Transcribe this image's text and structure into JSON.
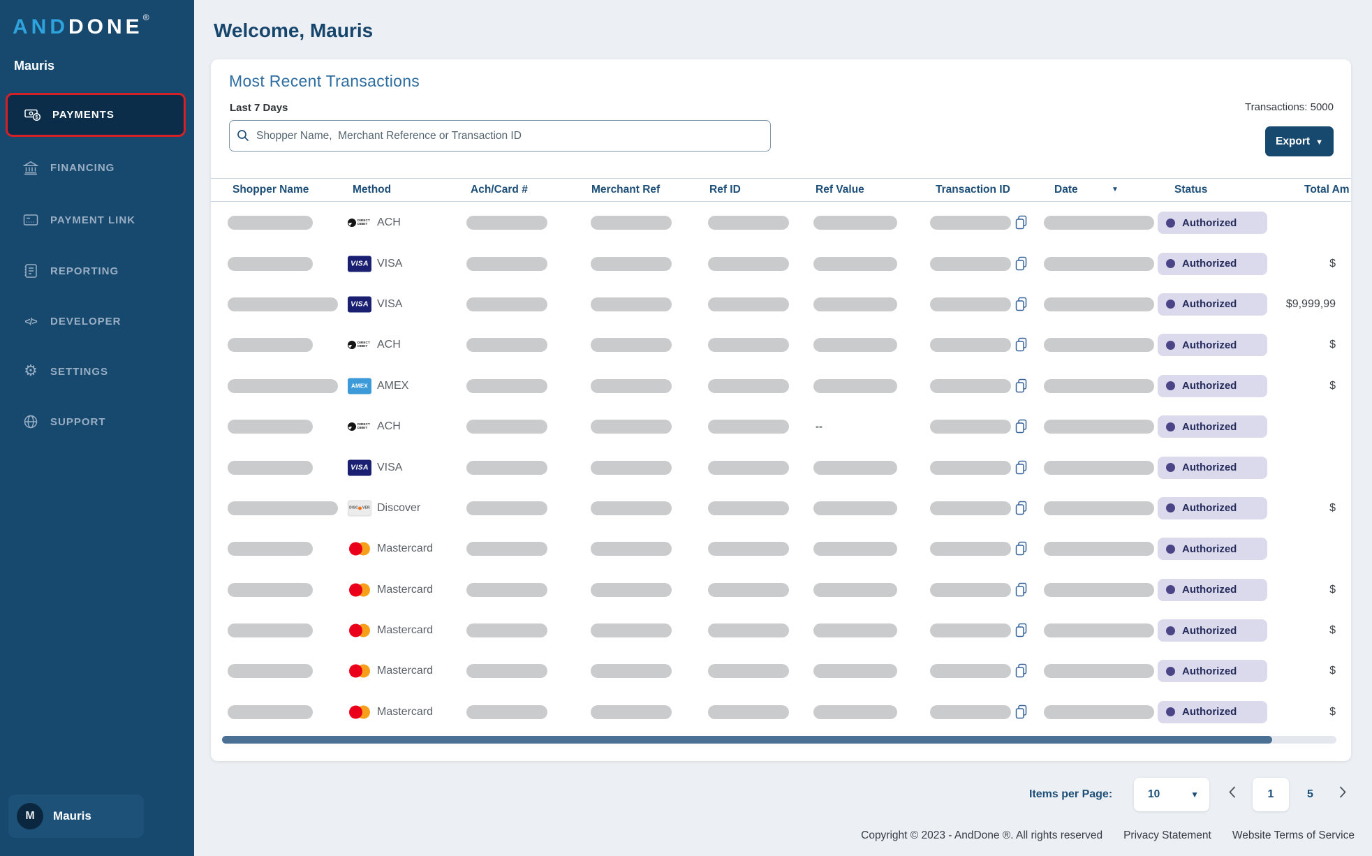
{
  "sidebar": {
    "logo": {
      "part1": "AND",
      "part2": "DONE",
      "registered": "®"
    },
    "user_name": "Mauris",
    "items": [
      {
        "label": "PAYMENTS",
        "icon": "payments-icon",
        "active": true
      },
      {
        "label": "FINANCING",
        "icon": "bank-icon",
        "active": false
      },
      {
        "label": "PAYMENT LINK",
        "icon": "payment-link-icon",
        "active": false
      },
      {
        "label": "REPORTING",
        "icon": "report-icon",
        "active": false
      },
      {
        "label": "DEVELOPER",
        "icon": "code-icon",
        "active": false
      },
      {
        "label": "SETTINGS",
        "icon": "gear-icon",
        "active": false
      },
      {
        "label": "SUPPORT",
        "icon": "globe-icon",
        "active": false
      }
    ],
    "profile": {
      "initial": "M",
      "name": "Mauris"
    }
  },
  "header": {
    "welcome_title": "Welcome, Mauris"
  },
  "transactions_card": {
    "title": "Most Recent Transactions",
    "subtitle": "Last 7 Days",
    "search_placeholder": "Shopper Name,  Merchant Reference or Transaction ID",
    "transactions_count_label": "Transactions: 5000",
    "export_label": "Export",
    "columns": [
      "Shopper Name",
      "Method",
      "Ach/Card #",
      "Merchant Ref",
      "Ref ID",
      "Ref Value",
      "Transaction ID",
      "Date",
      "Status",
      "Total Am"
    ],
    "rows": [
      {
        "method_label": "ACH",
        "method_type": "ach",
        "status": "Authorized",
        "total_amount": "",
        "ref_value": "",
        "wide_shopper": false
      },
      {
        "method_label": "VISA",
        "method_type": "visa",
        "status": "Authorized",
        "total_amount": "$",
        "ref_value": "",
        "wide_shopper": false
      },
      {
        "method_label": "VISA",
        "method_type": "visa",
        "status": "Authorized",
        "total_amount": "$9,999,99",
        "ref_value": "",
        "wide_shopper": true
      },
      {
        "method_label": "ACH",
        "method_type": "ach",
        "status": "Authorized",
        "total_amount": "$",
        "ref_value": "",
        "wide_shopper": false
      },
      {
        "method_label": "AMEX",
        "method_type": "amex",
        "status": "Authorized",
        "total_amount": "$",
        "ref_value": "",
        "wide_shopper": true
      },
      {
        "method_label": "ACH",
        "method_type": "ach",
        "status": "Authorized",
        "total_amount": "",
        "ref_value": "--",
        "wide_shopper": false
      },
      {
        "method_label": "VISA",
        "method_type": "visa",
        "status": "Authorized",
        "total_amount": "",
        "ref_value": "",
        "wide_shopper": false
      },
      {
        "method_label": "Discover",
        "method_type": "discover",
        "status": "Authorized",
        "total_amount": "$",
        "ref_value": "",
        "wide_shopper": true
      },
      {
        "method_label": "Mastercard",
        "method_type": "mastercard",
        "status": "Authorized",
        "total_amount": "",
        "ref_value": "",
        "wide_shopper": false
      },
      {
        "method_label": "Mastercard",
        "method_type": "mastercard",
        "status": "Authorized",
        "total_amount": "$",
        "ref_value": "",
        "wide_shopper": false
      },
      {
        "method_label": "Mastercard",
        "method_type": "mastercard",
        "status": "Authorized",
        "total_amount": "$",
        "ref_value": "",
        "wide_shopper": false
      },
      {
        "method_label": "Mastercard",
        "method_type": "mastercard",
        "status": "Authorized",
        "total_amount": "$",
        "ref_value": "",
        "wide_shopper": false
      },
      {
        "method_label": "Mastercard",
        "method_type": "mastercard",
        "status": "Authorized",
        "total_amount": "$",
        "ref_value": "",
        "wide_shopper": false
      }
    ]
  },
  "pagination": {
    "items_per_page_label": "Items per Page:",
    "items_per_page_value": "10",
    "current_page": "1",
    "last_page": "5"
  },
  "footer": {
    "copyright": "Copyright © 2023 - AndDone ®. All rights reserved",
    "privacy": "Privacy Statement",
    "terms": "Website Terms of Service"
  },
  "colors": {
    "sidebar_bg": "#17496F",
    "brand_blue": "#2FA3DD",
    "active_highlight_red": "#D32127",
    "navy_text": "#1C4E77",
    "section_title_blue": "#2E6DA0",
    "badge_bg": "#DBD9EC",
    "badge_dot": "#4B4588",
    "placeholder_gray": "#C9CBCD",
    "scrollbar_thumb": "#4A7194",
    "export_button_bg": "#17496F"
  }
}
